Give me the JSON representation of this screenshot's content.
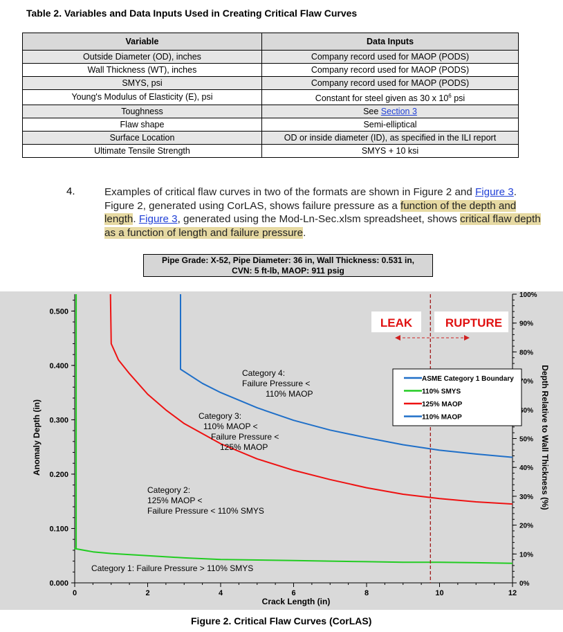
{
  "table": {
    "caption": "Table 2.  Variables and Data Inputs Used in Creating Critical Flaw Curves",
    "headers": [
      "Variable",
      "Data Inputs"
    ],
    "rows": [
      {
        "variable": "Outside Diameter (OD), inches",
        "input": "Company record used for MAOP (PODS)"
      },
      {
        "variable": "Wall Thickness (WT), inches",
        "input": "Company record used for MAOP (PODS)"
      },
      {
        "variable": "SMYS, psi",
        "input": "Company record used for MAOP (PODS)"
      },
      {
        "variable": "Young's Modulus of Elasticity (E), psi",
        "input_pre": "Constant for steel given as 30 x 10",
        "input_sup": "6",
        "input_post": " psi"
      },
      {
        "variable": "Toughness",
        "input_pre": "See ",
        "input_link": "Section 3"
      },
      {
        "variable": "Flaw shape",
        "input": "Semi-elliptical"
      },
      {
        "variable": "Surface Location",
        "input": "OD or inside diameter (ID), as specified in the ILI report"
      },
      {
        "variable": "Ultimate Tensile Strength",
        "input": "SMYS + 10 ksi"
      }
    ]
  },
  "paragraph": {
    "number": "4.",
    "t1": "Examples of critical flaw curves in two of the formats are shown in Figure 2 and ",
    "link1": "Figure 3",
    "t2": ". Figure 2, generated using CorLAS, shows failure pressure as a ",
    "hl1": "function of the depth and length",
    "t3": ". ",
    "link2": "Figure 3",
    "t4": ", generated using the Mod-Ln-Sec.xlsm spreadsheet, shows ",
    "hl2": "critical flaw depth as a function of length and failure pressure",
    "t5": "."
  },
  "pipe_box": {
    "line1": "Pipe Grade: X-52, Pipe Diameter: 36 in, Wall Thickness: 0.531 in,",
    "line2": "CVN: 5 ft-lb, MAOP: 911 psig"
  },
  "chart_data": {
    "type": "line",
    "xlabel": "Crack Length (in)",
    "ylabel": "Anomaly Depth (in)",
    "y2label": "Depth Relative to Wall Thickness (%)",
    "xlim": [
      0,
      12
    ],
    "ylim": [
      0,
      0.531
    ],
    "x_ticks": [
      "0",
      "2",
      "4",
      "6",
      "8",
      "10",
      "12"
    ],
    "y_ticks": [
      "0.000",
      "0.100",
      "0.200",
      "0.300",
      "0.400",
      "0.500"
    ],
    "y2_ticks": [
      "0%",
      "10%",
      "20%",
      "30%",
      "40%",
      "50%",
      "60%",
      "70%",
      "80%",
      "90%",
      "100%"
    ],
    "grid": false,
    "legend_position": "right",
    "leak_label": "LEAK",
    "rupture_label": "RUPTURE",
    "leak_rupture_x": 9.75,
    "annotations": [
      {
        "lines": [
          "Category 4:",
          "Failure Pressure <",
          "110% MAOP"
        ]
      },
      {
        "lines": [
          "Category 3:",
          "110% MAOP <",
          "Failure Pressure <",
          "125% MAOP"
        ]
      },
      {
        "lines": [
          "Category 2:",
          "125% MAOP <",
          "Failure Pressure < 110% SMYS"
        ]
      },
      {
        "lines": [
          "Category 1: Failure Pressure > 110% SMYS"
        ]
      }
    ],
    "series": [
      {
        "name": "ASME Category 1 Boundary",
        "color": "#1f6fc8",
        "values": []
      },
      {
        "name": "110% SMYS",
        "color": "#22cc22",
        "x": [
          0.0,
          0.5,
          1,
          2,
          3,
          4,
          5,
          6,
          7,
          8,
          9,
          10,
          11,
          12
        ],
        "y": [
          0.063,
          0.057,
          0.054,
          0.05,
          0.046,
          0.043,
          0.042,
          0.041,
          0.04,
          0.039,
          0.038,
          0.038,
          0.037,
          0.036
        ],
        "vertical_x": 0.04,
        "vertical_from": 0.063
      },
      {
        "name": "125% MAOP",
        "color": "#ee1111",
        "x": [
          0.98,
          1.0,
          1.2,
          1.5,
          2,
          2.5,
          3,
          4,
          5,
          6,
          7,
          8,
          9,
          10,
          11,
          12
        ],
        "y": [
          0.531,
          0.44,
          0.41,
          0.385,
          0.347,
          0.318,
          0.293,
          0.256,
          0.228,
          0.207,
          0.19,
          0.175,
          0.163,
          0.155,
          0.149,
          0.145
        ],
        "vertical_x": 0.98
      },
      {
        "name": "110% MAOP",
        "color": "#1f6fc8",
        "x": [
          2.9,
          2.9,
          3.5,
          4,
          5,
          6,
          7,
          8,
          9,
          10,
          11,
          12
        ],
        "y": [
          0.531,
          0.393,
          0.367,
          0.35,
          0.322,
          0.299,
          0.281,
          0.267,
          0.254,
          0.244,
          0.237,
          0.231
        ],
        "vertical_x": 2.9
      }
    ]
  },
  "figure_caption": "Figure 2.  Critical Flaw Curves (CorLAS)"
}
